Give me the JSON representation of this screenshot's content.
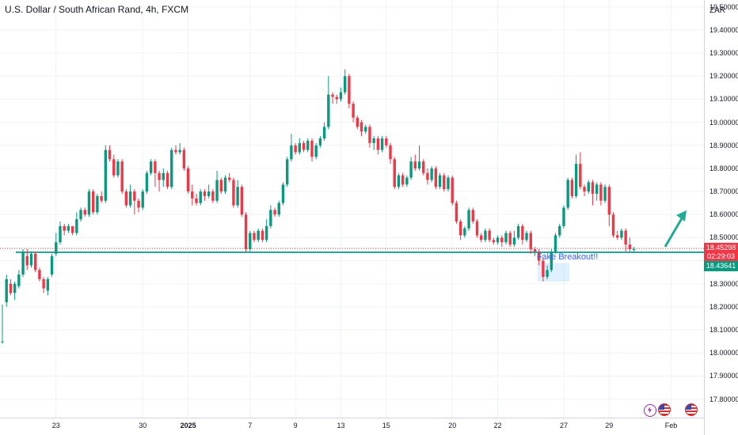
{
  "header": {
    "symbol_title": "U.S. Dollar / South African Rand, 4h, FXCM",
    "currency": "ZAR"
  },
  "price_tags": {
    "current_price": "18.45298",
    "countdown": "02:29:03",
    "level_price": "18.43641",
    "current_color": "#f23645",
    "level_color": "#089981"
  },
  "annotation": {
    "text": "Fake Breakout!!"
  },
  "colors": {
    "up": "#089981",
    "down": "#f23645",
    "support_line": "#26a69a",
    "arrow": "#22ab94",
    "grid": "#f0f3fa"
  },
  "icons": [
    "lightning-icon",
    "us-flag-icon",
    "us-flag-icon"
  ],
  "chart_data": {
    "type": "candlestick",
    "timeframe": "4h",
    "ylim": [
      17.72,
      19.53
    ],
    "support_level": 18.43641,
    "current_price": 18.45298,
    "yticks": [
      "17.80000",
      "17.90000",
      "18.00000",
      "18.10000",
      "18.20000",
      "18.30000",
      "18.40000",
      "18.50000",
      "18.60000",
      "18.70000",
      "18.80000",
      "18.90000",
      "19.00000",
      "19.10000",
      "19.20000",
      "19.30000",
      "19.40000",
      "19.50000"
    ],
    "xticks": [
      {
        "label": "23",
        "index": 13,
        "bold": false
      },
      {
        "label": "30",
        "index": 34,
        "bold": false
      },
      {
        "label": "2025",
        "index": 45,
        "bold": true
      },
      {
        "label": "7",
        "index": 60,
        "bold": false
      },
      {
        "label": "9",
        "index": 71,
        "bold": false
      },
      {
        "label": "13",
        "index": 82,
        "bold": false
      },
      {
        "label": "15",
        "index": 93,
        "bold": false
      },
      {
        "label": "20",
        "index": 109,
        "bold": false
      },
      {
        "label": "22",
        "index": 120,
        "bold": false
      },
      {
        "label": "27",
        "index": 136,
        "bold": false
      },
      {
        "label": "29",
        "index": 147,
        "bold": false
      },
      {
        "label": "Feb",
        "index": 162,
        "bold": false
      }
    ],
    "breakout_box": {
      "from_index": 130,
      "to_index": 137,
      "low": 18.31,
      "high": 18.39
    },
    "candles": [
      [
        18.05,
        18.05,
        18.21,
        18.04
      ],
      [
        18.22,
        18.32,
        18.34,
        18.2
      ],
      [
        18.3,
        18.26,
        18.32,
        18.25
      ],
      [
        18.26,
        18.3,
        18.31,
        18.23
      ],
      [
        18.29,
        18.34,
        18.36,
        18.28
      ],
      [
        18.34,
        18.44,
        18.45,
        18.33
      ],
      [
        18.42,
        18.38,
        18.45,
        18.36
      ],
      [
        18.38,
        18.43,
        18.44,
        18.37
      ],
      [
        18.43,
        18.36,
        18.44,
        18.35
      ],
      [
        18.36,
        18.32,
        18.37,
        18.31
      ],
      [
        18.32,
        18.28,
        18.33,
        18.26
      ],
      [
        18.27,
        18.32,
        18.33,
        18.25
      ],
      [
        18.34,
        18.42,
        18.43,
        18.33
      ],
      [
        18.43,
        18.48,
        18.52,
        18.42
      ],
      [
        18.48,
        18.55,
        18.57,
        18.47
      ],
      [
        18.55,
        18.53,
        18.56,
        18.51
      ],
      [
        18.53,
        18.55,
        18.56,
        18.52
      ],
      [
        18.55,
        18.52,
        18.55,
        18.51
      ],
      [
        18.52,
        18.58,
        18.61,
        18.51
      ],
      [
        18.58,
        18.62,
        18.63,
        18.57
      ],
      [
        18.62,
        18.6,
        18.63,
        18.59
      ],
      [
        18.6,
        18.7,
        18.71,
        18.59
      ],
      [
        18.7,
        18.61,
        18.71,
        18.6
      ],
      [
        18.61,
        18.68,
        18.69,
        18.6
      ],
      [
        18.68,
        18.66,
        18.7,
        18.65
      ],
      [
        18.66,
        18.88,
        18.9,
        18.65
      ],
      [
        18.88,
        18.84,
        18.9,
        18.83
      ],
      [
        18.84,
        18.77,
        18.86,
        18.76
      ],
      [
        18.77,
        18.83,
        18.84,
        18.76
      ],
      [
        18.83,
        18.7,
        18.84,
        18.69
      ],
      [
        18.7,
        18.64,
        18.71,
        18.63
      ],
      [
        18.64,
        18.7,
        18.73,
        18.63
      ],
      [
        18.7,
        18.66,
        18.71,
        18.6
      ],
      [
        18.66,
        18.63,
        18.67,
        18.61
      ],
      [
        18.63,
        18.7,
        18.71,
        18.62
      ],
      [
        18.7,
        18.78,
        18.79,
        18.69
      ],
      [
        18.78,
        18.83,
        18.84,
        18.77
      ],
      [
        18.83,
        18.78,
        18.84,
        18.72
      ],
      [
        18.78,
        18.75,
        18.79,
        18.7
      ],
      [
        18.75,
        18.78,
        18.8,
        18.72
      ],
      [
        18.78,
        18.72,
        18.79,
        18.71
      ],
      [
        18.72,
        18.88,
        18.89,
        18.71
      ],
      [
        18.88,
        18.87,
        18.9,
        18.86
      ],
      [
        18.87,
        18.88,
        18.91,
        18.86
      ],
      [
        18.88,
        18.8,
        18.89,
        18.79
      ],
      [
        18.8,
        18.7,
        18.81,
        18.69
      ],
      [
        18.7,
        18.67,
        18.73,
        18.64
      ],
      [
        18.67,
        18.65,
        18.69,
        18.64
      ],
      [
        18.65,
        18.7,
        18.71,
        18.64
      ],
      [
        18.7,
        18.68,
        18.71,
        18.66
      ],
      [
        18.68,
        18.7,
        18.73,
        18.67
      ],
      [
        18.7,
        18.66,
        18.71,
        18.65
      ],
      [
        18.66,
        18.75,
        18.79,
        18.65
      ],
      [
        18.75,
        18.7,
        18.76,
        18.69
      ],
      [
        18.7,
        18.76,
        18.77,
        18.69
      ],
      [
        18.76,
        18.75,
        18.78,
        18.74
      ],
      [
        18.75,
        18.64,
        18.76,
        18.63
      ],
      [
        18.64,
        18.72,
        18.75,
        18.63
      ],
      [
        18.72,
        18.6,
        18.73,
        18.59
      ],
      [
        18.6,
        18.45,
        18.61,
        18.44
      ],
      [
        18.45,
        18.52,
        18.53,
        18.44
      ],
      [
        18.52,
        18.49,
        18.53,
        18.48
      ],
      [
        18.49,
        18.53,
        18.54,
        18.48
      ],
      [
        18.53,
        18.49,
        18.54,
        18.48
      ],
      [
        18.49,
        18.55,
        18.58,
        18.48
      ],
      [
        18.55,
        18.62,
        18.64,
        18.54
      ],
      [
        18.62,
        18.6,
        18.63,
        18.59
      ],
      [
        18.6,
        18.65,
        18.66,
        18.59
      ],
      [
        18.65,
        18.73,
        18.74,
        18.64
      ],
      [
        18.73,
        18.84,
        18.85,
        18.72
      ],
      [
        18.84,
        18.9,
        18.95,
        18.83
      ],
      [
        18.9,
        18.87,
        18.91,
        18.86
      ],
      [
        18.87,
        18.91,
        18.93,
        18.86
      ],
      [
        18.91,
        18.88,
        18.92,
        18.87
      ],
      [
        18.88,
        18.92,
        18.93,
        18.87
      ],
      [
        18.92,
        18.85,
        18.93,
        18.83
      ],
      [
        18.85,
        18.9,
        18.91,
        18.84
      ],
      [
        18.9,
        18.93,
        18.94,
        18.89
      ],
      [
        18.93,
        18.98,
        19.0,
        18.92
      ],
      [
        18.98,
        19.12,
        19.2,
        18.97
      ],
      [
        19.12,
        19.11,
        19.13,
        19.08
      ],
      [
        19.11,
        19.1,
        19.12,
        19.08
      ],
      [
        19.1,
        19.13,
        19.15,
        19.09
      ],
      [
        19.13,
        19.2,
        19.23,
        19.12
      ],
      [
        19.2,
        19.08,
        19.21,
        19.06
      ],
      [
        19.08,
        19.02,
        19.09,
        19.0
      ],
      [
        19.02,
        18.98,
        19.03,
        18.97
      ],
      [
        19.0,
        18.96,
        19.01,
        18.94
      ],
      [
        18.96,
        18.98,
        18.99,
        18.95
      ],
      [
        18.98,
        18.91,
        18.99,
        18.89
      ],
      [
        18.91,
        18.93,
        18.94,
        18.88
      ],
      [
        18.93,
        18.88,
        18.94,
        18.86
      ],
      [
        18.88,
        18.93,
        18.94,
        18.87
      ],
      [
        18.93,
        18.9,
        18.94,
        18.89
      ],
      [
        18.9,
        18.84,
        18.91,
        18.82
      ],
      [
        18.84,
        18.72,
        18.85,
        18.71
      ],
      [
        18.72,
        18.77,
        18.78,
        18.71
      ],
      [
        18.77,
        18.73,
        18.78,
        18.72
      ],
      [
        18.73,
        18.76,
        18.77,
        18.72
      ],
      [
        18.76,
        18.83,
        18.85,
        18.75
      ],
      [
        18.83,
        18.8,
        18.86,
        18.79
      ],
      [
        18.8,
        18.83,
        18.9,
        18.79
      ],
      [
        18.83,
        18.78,
        18.84,
        18.77
      ],
      [
        18.78,
        18.75,
        18.8,
        18.73
      ],
      [
        18.75,
        18.8,
        18.81,
        18.74
      ],
      [
        18.8,
        18.72,
        18.81,
        18.71
      ],
      [
        18.72,
        18.77,
        18.78,
        18.71
      ],
      [
        18.77,
        18.71,
        18.78,
        18.7
      ],
      [
        18.71,
        18.76,
        18.77,
        18.7
      ],
      [
        18.76,
        18.65,
        18.77,
        18.64
      ],
      [
        18.65,
        18.57,
        18.66,
        18.56
      ],
      [
        18.57,
        18.51,
        18.58,
        18.49
      ],
      [
        18.51,
        18.54,
        18.55,
        18.5
      ],
      [
        18.54,
        18.62,
        18.63,
        18.53
      ],
      [
        18.62,
        18.57,
        18.63,
        18.56
      ],
      [
        18.57,
        18.51,
        18.58,
        18.5
      ],
      [
        18.51,
        18.49,
        18.52,
        18.48
      ],
      [
        18.49,
        18.53,
        18.54,
        18.48
      ],
      [
        18.53,
        18.49,
        18.54,
        18.48
      ],
      [
        18.49,
        18.48,
        18.5,
        18.47
      ],
      [
        18.48,
        18.5,
        18.51,
        18.47
      ],
      [
        18.5,
        18.48,
        18.51,
        18.46
      ],
      [
        18.48,
        18.52,
        18.53,
        18.47
      ],
      [
        18.52,
        18.47,
        18.53,
        18.46
      ],
      [
        18.47,
        18.5,
        18.53,
        18.46
      ],
      [
        18.5,
        18.55,
        18.56,
        18.49
      ],
      [
        18.55,
        18.49,
        18.56,
        18.47
      ],
      [
        18.49,
        18.52,
        18.53,
        18.48
      ],
      [
        18.52,
        18.45,
        18.53,
        18.43
      ],
      [
        18.45,
        18.44,
        18.46,
        18.42
      ],
      [
        18.44,
        18.4,
        18.45,
        18.38
      ],
      [
        18.4,
        18.33,
        18.41,
        18.31
      ],
      [
        18.33,
        18.36,
        18.38,
        18.32
      ],
      [
        18.36,
        18.44,
        18.45,
        18.35
      ],
      [
        18.44,
        18.51,
        18.52,
        18.43
      ],
      [
        18.51,
        18.55,
        18.56,
        18.5
      ],
      [
        18.55,
        18.63,
        18.64,
        18.54
      ],
      [
        18.63,
        18.75,
        18.76,
        18.62
      ],
      [
        18.75,
        18.68,
        18.76,
        18.67
      ],
      [
        18.68,
        18.82,
        18.86,
        18.67
      ],
      [
        18.82,
        18.72,
        18.87,
        18.71
      ],
      [
        18.72,
        18.7,
        18.73,
        18.68
      ],
      [
        18.7,
        18.74,
        18.75,
        18.69
      ],
      [
        18.74,
        18.69,
        18.75,
        18.64
      ],
      [
        18.69,
        18.73,
        18.74,
        18.66
      ],
      [
        18.73,
        18.66,
        18.74,
        18.64
      ],
      [
        18.66,
        18.72,
        18.73,
        18.65
      ],
      [
        18.72,
        18.6,
        18.73,
        18.55
      ],
      [
        18.6,
        18.51,
        18.61,
        18.5
      ],
      [
        18.51,
        18.5,
        18.53,
        18.49
      ],
      [
        18.5,
        18.53,
        18.54,
        18.49
      ],
      [
        18.53,
        18.47,
        18.54,
        18.44
      ],
      [
        18.47,
        18.45,
        18.5,
        18.44
      ],
      [
        18.45,
        18.45,
        18.46,
        18.44
      ]
    ]
  }
}
